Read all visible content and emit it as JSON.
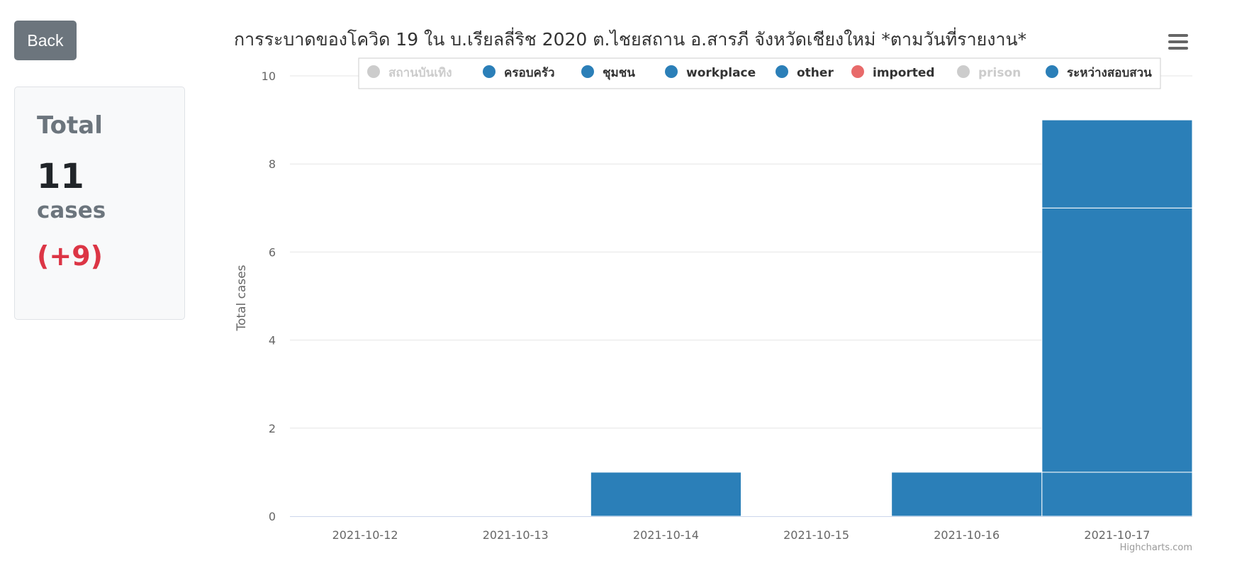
{
  "back_label": "Back",
  "total_card": {
    "title": "Total",
    "number": "11",
    "unit": "cases",
    "delta": "(+9)"
  },
  "chart_menu_icon": "hamburger-menu-icon",
  "credits": "Highcharts.com",
  "colors": {
    "series_blue": "#2b7fb8",
    "imported_red": "#e86a6a",
    "legend_hidden": "#cccccc",
    "delta_red": "#dc3545"
  },
  "chart_data": {
    "type": "bar",
    "stacked": true,
    "title": "การระบาดของโควิด 19 ใน บ.เรียลลี่ริช 2020 ต.ไชยสถาน อ.สารภี จังหวัดเชียงใหม่ *ตามวันที่รายงาน*",
    "xlabel": "",
    "ylabel": "Total cases",
    "ylim": [
      0,
      10
    ],
    "yticks": [
      0,
      2,
      4,
      6,
      8,
      10
    ],
    "grid": true,
    "legend_position": "top",
    "categories": [
      "2021-10-12",
      "2021-10-13",
      "2021-10-14",
      "2021-10-15",
      "2021-10-16",
      "2021-10-17"
    ],
    "stack_segments": [
      [],
      [],
      [
        1
      ],
      [],
      [
        1
      ],
      [
        1,
        6,
        2
      ]
    ],
    "legend": [
      {
        "name": "สถานบันเทิง",
        "visible": false,
        "color": "#cccccc"
      },
      {
        "name": "ครอบครัว",
        "visible": true,
        "color": "#2b7fb8"
      },
      {
        "name": "ชุมชน",
        "visible": true,
        "color": "#2b7fb8"
      },
      {
        "name": "workplace",
        "visible": true,
        "color": "#2b7fb8"
      },
      {
        "name": "other",
        "visible": true,
        "color": "#2b7fb8"
      },
      {
        "name": "imported",
        "visible": true,
        "color": "#e86a6a"
      },
      {
        "name": "prison",
        "visible": false,
        "color": "#cccccc"
      },
      {
        "name": "ระหว่างสอบสวน",
        "visible": true,
        "color": "#2b7fb8"
      }
    ]
  }
}
